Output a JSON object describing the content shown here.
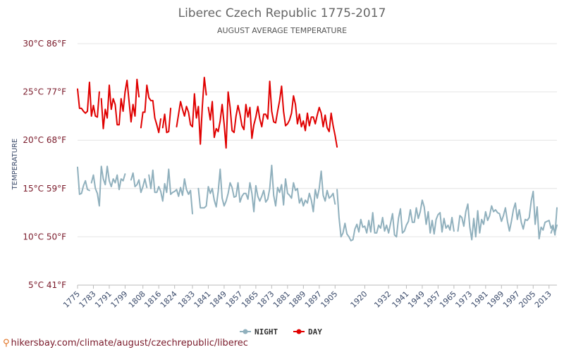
{
  "footer": {
    "icon": "location-pin-icon",
    "text": "hikersbay.com/climate/august/czechrepublic/liberec"
  },
  "chart_data": {
    "type": "line",
    "title": "Liberec Czech Republic 1775-2017",
    "subtitle": "AUGUST AVERAGE TEMPERATURE",
    "ylabel": "TEMPERATURE",
    "xlabel": "",
    "ylim": [
      5,
      30
    ],
    "xlim": [
      1775,
      2017
    ],
    "y_ticks": [
      5,
      10,
      15,
      20,
      25,
      30
    ],
    "y_tick_labels": [
      "5°C 41°F",
      "10°C 50°F",
      "15°C 59°F",
      "20°C 68°F",
      "25°C 77°F",
      "30°C 86°F"
    ],
    "x_ticks": [
      1775,
      1783,
      1791,
      1799,
      1808,
      1816,
      1824,
      1833,
      1841,
      1849,
      1857,
      1865,
      1873,
      1881,
      1889,
      1897,
      1905,
      1920,
      1932,
      1941,
      1949,
      1957,
      1965,
      1973,
      1981,
      1989,
      1997,
      2005,
      2013
    ],
    "grid": true,
    "legend_position": "bottom-center",
    "series": [
      {
        "name": "NIGHT",
        "color": "#90b0bd",
        "segments": [
          {
            "x": [
              1775,
              1776,
              1777,
              1778,
              1779,
              1780,
              1781
            ],
            "y": [
              17.2,
              14.4,
              14.5,
              15.3,
              15.8,
              14.9,
              14.8
            ]
          },
          {
            "x": [
              1782,
              1783,
              1784,
              1785,
              1786,
              1787,
              1788,
              1789,
              1790,
              1791,
              1792,
              1793,
              1794,
              1795,
              1796,
              1797,
              1798,
              1799
            ],
            "y": [
              15.6,
              16.4,
              15.0,
              14.5,
              13.2,
              17.3,
              16.0,
              15.4,
              17.3,
              15.8,
              15.2,
              16.0,
              15.6,
              16.4,
              14.9,
              16.0,
              15.8,
              16.5
            ]
          },
          {
            "x": [
              1802,
              1803,
              1804,
              1805,
              1806,
              1807,
              1808,
              1809,
              1810
            ],
            "y": [
              15.9,
              16.6,
              15.2,
              15.4,
              15.9,
              14.6,
              15.2,
              16.0,
              15.1
            ]
          },
          {
            "x": [
              1811,
              1812,
              1813,
              1814,
              1815,
              1816,
              1817,
              1818,
              1819,
              1820,
              1821,
              1822,
              1823,
              1824,
              1825,
              1826,
              1827,
              1828,
              1829,
              1830,
              1831,
              1832,
              1833
            ],
            "y": [
              16.4,
              15.0,
              16.9,
              14.6,
              14.6,
              15.2,
              14.7,
              13.7,
              15.5,
              14.6,
              17.0,
              14.4,
              14.6,
              14.7,
              14.9,
              14.2,
              15.1,
              14.3,
              16.0,
              14.9,
              14.4,
              14.8,
              12.4
            ]
          },
          {
            "x": [
              1836,
              1837,
              1838,
              1839,
              1840,
              1841,
              1842,
              1843,
              1844,
              1845,
              1846,
              1847,
              1848,
              1849,
              1850,
              1851,
              1852,
              1853,
              1854,
              1855,
              1856,
              1857,
              1858,
              1859,
              1860,
              1861,
              1862,
              1863,
              1864,
              1865,
              1866,
              1867,
              1868,
              1869,
              1870,
              1871,
              1872,
              1873,
              1874,
              1875,
              1876,
              1877,
              1878,
              1879,
              1880,
              1881,
              1882,
              1883,
              1884,
              1885,
              1886,
              1887,
              1888,
              1889,
              1890,
              1891,
              1892,
              1893,
              1894,
              1895,
              1896,
              1897,
              1898,
              1899,
              1900,
              1901,
              1902,
              1903,
              1904,
              1905
            ],
            "y": [
              15.0,
              13.0,
              13.0,
              13.0,
              13.2,
              15.2,
              14.5,
              15.0,
              13.8,
              13.1,
              14.7,
              17.0,
              14.0,
              13.2,
              13.7,
              14.5,
              15.6,
              15.1,
              14.1,
              14.2,
              15.6,
              13.6,
              14.2,
              14.5,
              14.5,
              13.9,
              15.6,
              14.5,
              12.6,
              15.3,
              14.2,
              13.7,
              14.2,
              14.8,
              13.6,
              13.9,
              15.0,
              17.4,
              14.3,
              13.2,
              15.1,
              14.6,
              15.4,
              13.3,
              16.0,
              14.5,
              14.3,
              14.0,
              15.6,
              14.8,
              15.0,
              13.5,
              14.0,
              13.2,
              13.8,
              13.5,
              14.5,
              13.8,
              12.6,
              14.9,
              14.0,
              15.0,
              16.8,
              14.3,
              13.7,
              14.8,
              14.0,
              14.2,
              14.5,
              13.4
            ]
          },
          {
            "x": [
              1906,
              1907,
              1908,
              1909,
              1910,
              1911,
              1912,
              1913,
              1914,
              1915,
              1916,
              1917,
              1918,
              1919,
              1920,
              1921,
              1922,
              1923,
              1924,
              1925,
              1926,
              1927,
              1928,
              1929,
              1930,
              1931,
              1932,
              1933,
              1934,
              1935,
              1936,
              1937,
              1938,
              1939,
              1940,
              1941,
              1942,
              1943,
              1944,
              1945,
              1946,
              1947,
              1948,
              1949,
              1950,
              1951,
              1952,
              1953,
              1954,
              1955,
              1956,
              1957,
              1958,
              1959,
              1960,
              1961,
              1962,
              1963,
              1964,
              1965
            ],
            "y": [
              14.9,
              12.0,
              10.0,
              10.4,
              11.4,
              10.3,
              10.0,
              9.6,
              9.7,
              10.8,
              11.3,
              10.5,
              11.8,
              11.0,
              11.1,
              10.4,
              11.7,
              10.5,
              12.5,
              10.4,
              10.4,
              11.2,
              10.9,
              12.0,
              10.6,
              11.2,
              10.4,
              11.4,
              12.4,
              10.2,
              10.0,
              11.9,
              12.9,
              10.4,
              10.6,
              11.2,
              11.6,
              12.8,
              11.5,
              11.5,
              13.0,
              11.9,
              12.6,
              13.8,
              13.1,
              11.3,
              12.6,
              10.4,
              11.7,
              10.3,
              11.8,
              12.3,
              12.5,
              10.5,
              11.9,
              10.9,
              11.2,
              10.7,
              12.0,
              10.6
            ]
          },
          {
            "x": [
              1967,
              1968,
              1969,
              1970,
              1971,
              1972,
              1973,
              1974,
              1975,
              1976,
              1977,
              1978,
              1979,
              1980,
              1981,
              1982,
              1983,
              1984,
              1985,
              1986,
              1987,
              1988,
              1989,
              1990,
              1991,
              1992,
              1993,
              1994,
              1995,
              1996,
              1997,
              1998,
              1999,
              2000,
              2001,
              2002,
              2003,
              2004,
              2005,
              2006,
              2007,
              2008,
              2009,
              2010,
              2011,
              2012,
              2013,
              2014,
              2015,
              2016,
              2017
            ],
            "y": [
              10.6,
              12.2,
              12.0,
              11.1,
              12.6,
              13.4,
              11.0,
              9.7,
              11.9,
              10.0,
              12.7,
              10.4,
              11.8,
              11.3,
              12.6,
              11.7,
              12.2,
              13.2,
              12.6,
              12.8,
              12.5,
              12.4,
              11.6,
              12.2,
              13.0,
              11.6,
              10.6,
              11.6,
              12.8,
              13.5,
              11.8,
              12.8,
              11.5,
              10.8,
              11.8,
              11.7,
              12.0,
              13.7,
              14.7,
              11.3,
              13.1,
              9.8,
              11.0,
              10.7,
              11.5,
              11.6,
              11.7,
              10.9,
              11.2,
              10.2,
              13.0
            ]
          },
          {
            "x": [
              2014,
              2015,
              2016,
              2017
            ],
            "y": [
              10.4,
              11.0,
              10.4,
              11.2
            ]
          }
        ]
      },
      {
        "name": "DAY",
        "color": "#e00000",
        "segments": [
          {
            "x": [
              1775,
              1776,
              1777,
              1778,
              1779,
              1780,
              1781,
              1782,
              1783,
              1784,
              1785,
              1786
            ],
            "y": [
              25.3,
              23.3,
              23.3,
              23.0,
              22.8,
              23.0,
              26.0,
              22.5,
              23.6,
              22.5,
              22.4,
              25.0
            ]
          },
          {
            "x": [
              1787,
              1788,
              1789,
              1790,
              1791,
              1792,
              1793,
              1794,
              1795,
              1796,
              1797,
              1798,
              1799,
              1800,
              1801,
              1802,
              1803,
              1804,
              1805,
              1806
            ],
            "y": [
              24.3,
              21.2,
              23.2,
              22.3,
              25.7,
              23.2,
              24.3,
              23.7,
              21.6,
              21.6,
              24.3,
              23.0,
              25.0,
              26.2,
              24.0,
              21.9,
              23.7,
              22.5,
              26.3,
              24.5
            ]
          },
          {
            "x": [
              1807,
              1808,
              1809,
              1810,
              1811,
              1812,
              1813,
              1814,
              1815,
              1816,
              1817
            ],
            "y": [
              21.3,
              22.9,
              22.9,
              25.7,
              24.4,
              24.1,
              24.1,
              22.3,
              21.6,
              20.8,
              22.2
            ]
          },
          {
            "x": [
              1818,
              1819,
              1820,
              1821,
              1822
            ],
            "y": [
              21.3,
              22.7,
              20.8,
              20.9,
              23.3
            ]
          },
          {
            "x": [
              1825,
              1826,
              1827,
              1828,
              1829,
              1830,
              1831,
              1832,
              1833,
              1834,
              1835,
              1836,
              1837,
              1838,
              1839,
              1840
            ],
            "y": [
              21.4,
              22.7,
              24.0,
              23.2,
              22.5,
              23.5,
              22.9,
              21.6,
              21.4,
              24.8,
              22.3,
              23.5,
              19.6,
              23.5,
              26.5,
              24.7
            ]
          },
          {
            "x": [
              1841,
              1842,
              1843,
              1844,
              1845,
              1846,
              1847,
              1848,
              1849,
              1850,
              1851,
              1852,
              1853,
              1854,
              1855,
              1856,
              1857,
              1858,
              1859,
              1860,
              1861,
              1862,
              1863,
              1864,
              1865,
              1866,
              1867,
              1868,
              1869,
              1870,
              1871,
              1872,
              1873,
              1874,
              1875,
              1876,
              1877,
              1878,
              1879,
              1880,
              1881,
              1882,
              1883,
              1884,
              1885,
              1886,
              1887,
              1888,
              1889,
              1890,
              1891,
              1892,
              1893,
              1894,
              1895,
              1896,
              1897,
              1898,
              1899,
              1900,
              1901,
              1902,
              1903,
              1904,
              1905,
              1906
            ],
            "y": [
              23.4,
              22.1,
              24.0,
              20.3,
              21.2,
              20.9,
              22.0,
              23.7,
              21.7,
              19.2,
              25.0,
              23.4,
              21.0,
              20.8,
              22.5,
              23.6,
              22.7,
              21.5,
              21.1,
              23.7,
              22.4,
              23.4,
              20.2,
              21.6,
              22.4,
              23.5,
              22.2,
              21.4,
              22.7,
              22.7,
              22.2,
              26.1,
              23.0,
              21.9,
              21.8,
              23.0,
              24.1,
              25.6,
              23.0,
              21.5,
              21.7,
              22.1,
              22.8,
              24.6,
              23.7,
              21.7,
              22.7,
              21.4,
              22.0,
              21.0,
              22.8,
              21.5,
              22.4,
              22.4,
              21.7,
              22.6,
              23.4,
              22.8,
              21.4,
              22.6,
              21.3,
              20.9,
              22.8,
              21.5,
              20.5,
              19.3
            ]
          }
        ]
      }
    ]
  }
}
